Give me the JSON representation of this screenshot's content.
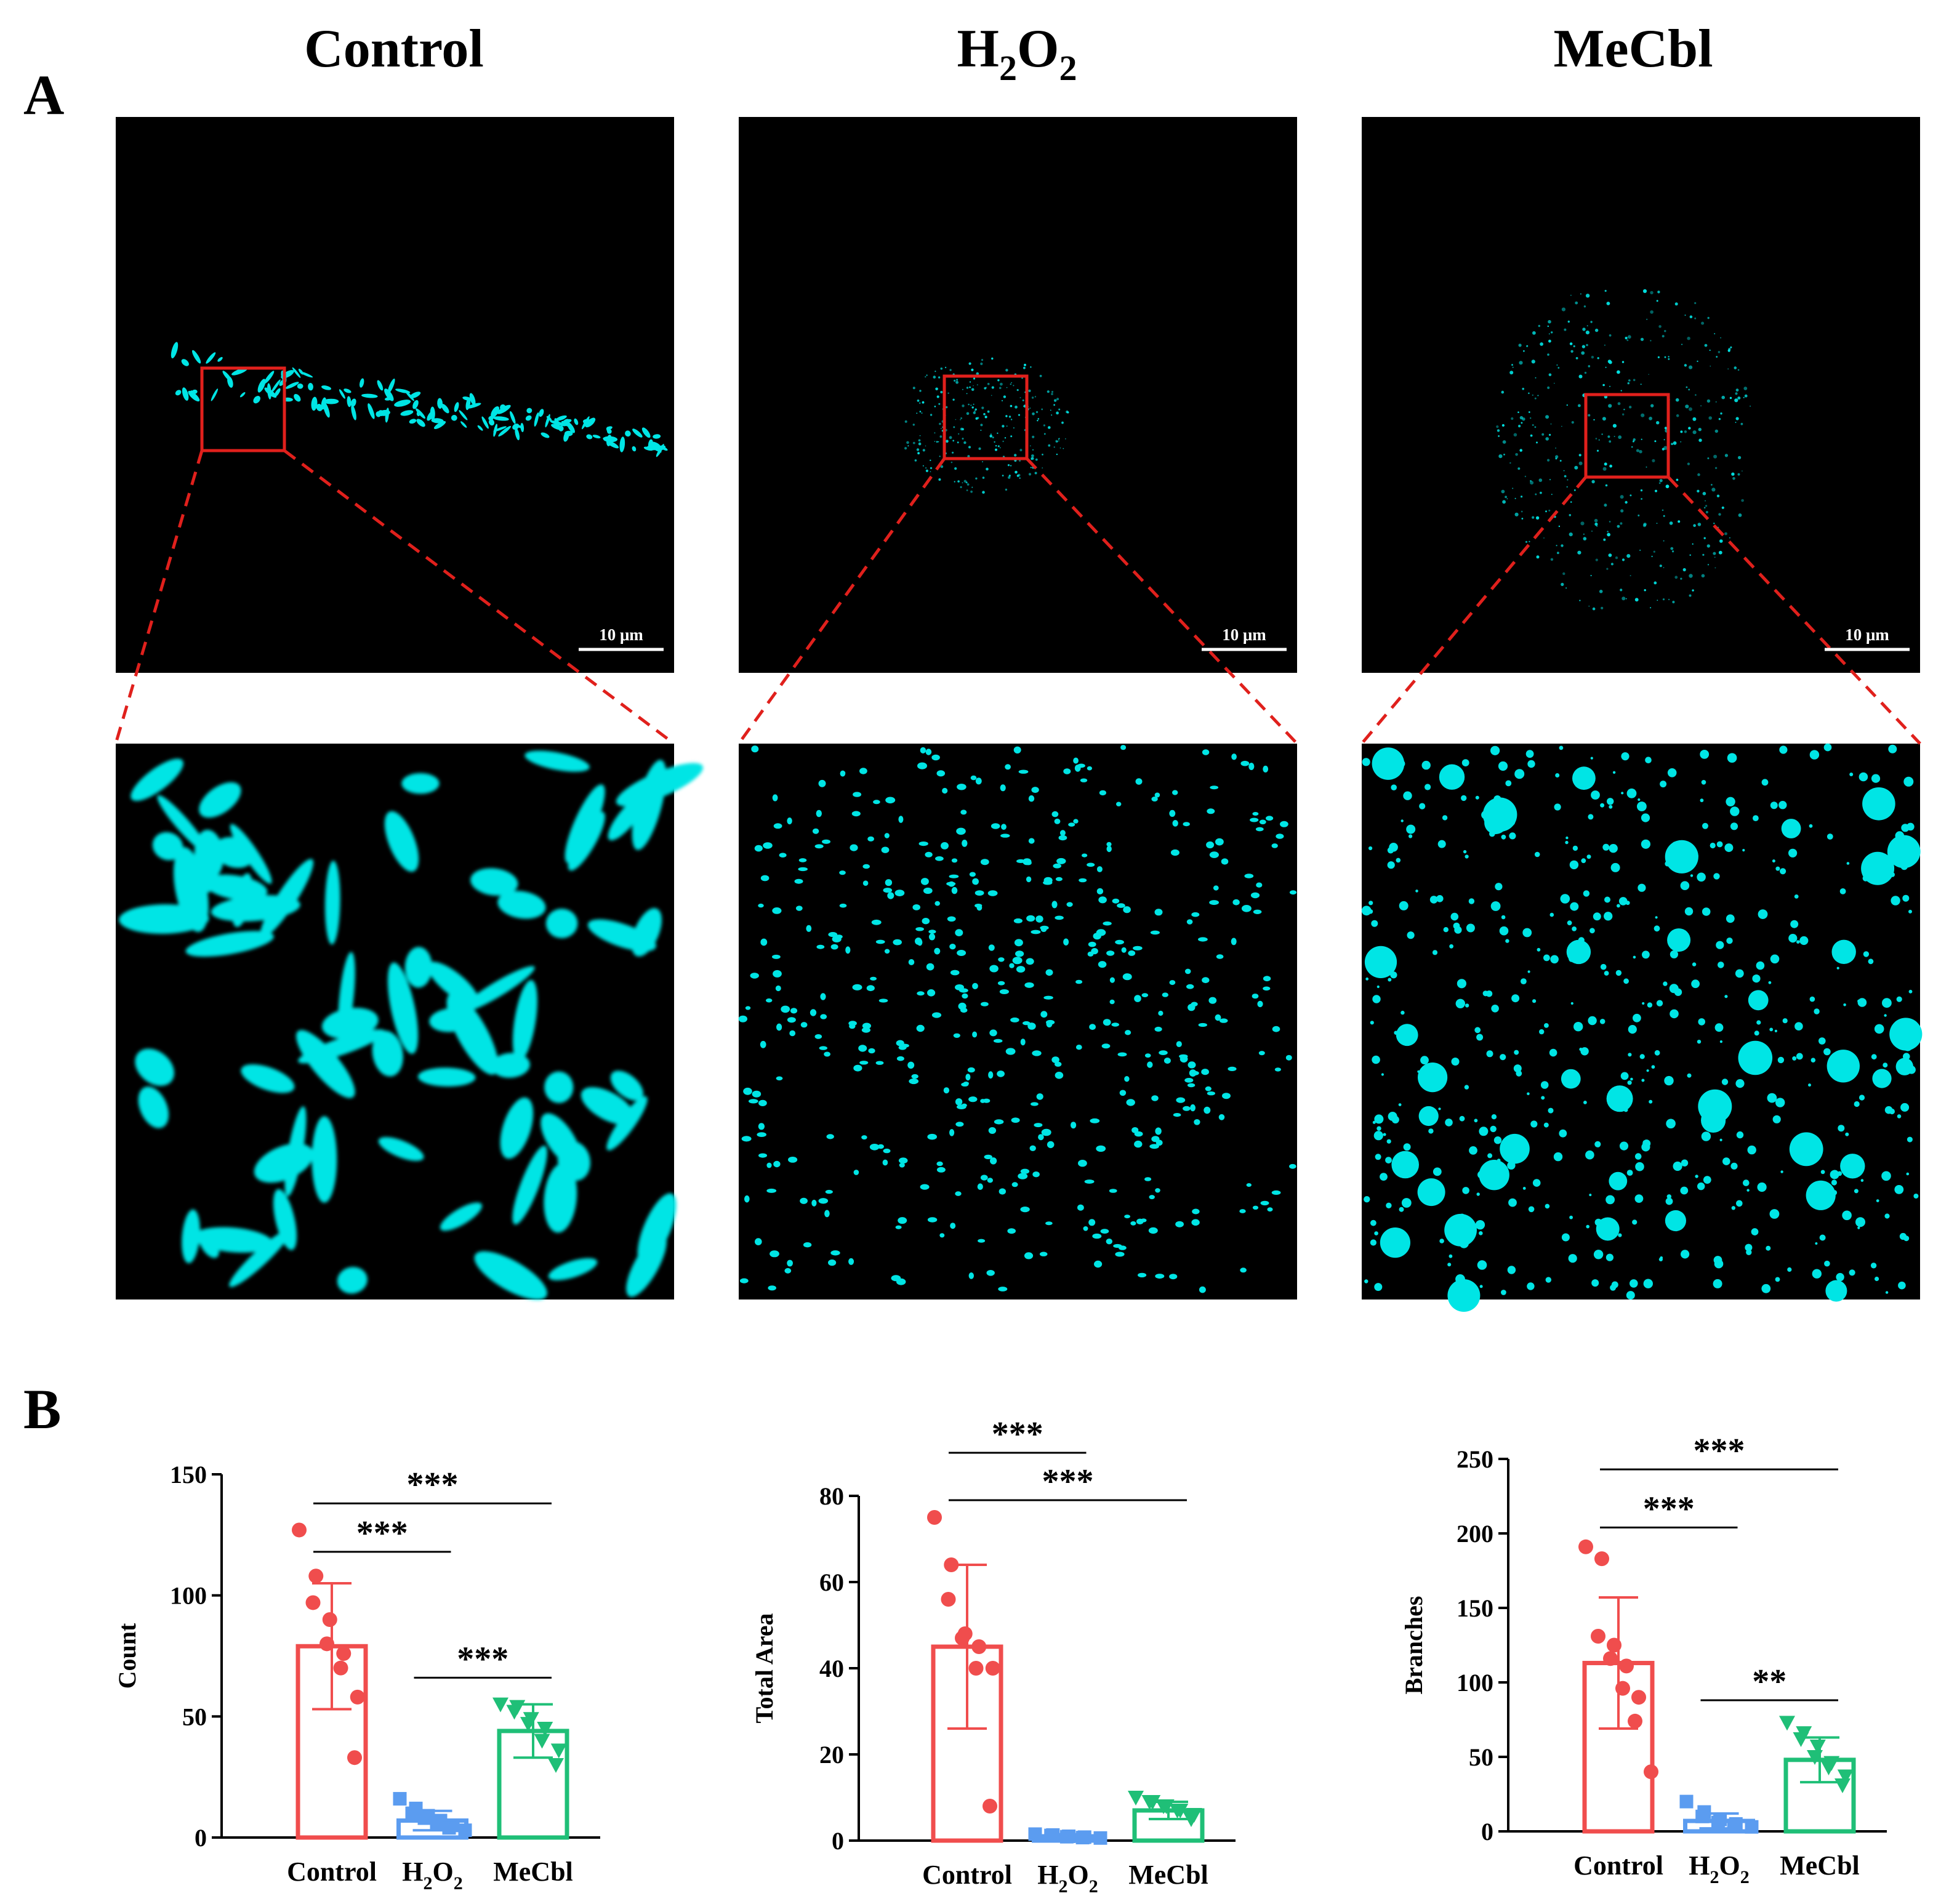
{
  "figure": {
    "panel_a_label": "A",
    "panel_b_label": "B",
    "columns": [
      {
        "title": "Control",
        "title_sub": "",
        "title_tail": "",
        "title_sub2": ""
      },
      {
        "title": "H",
        "title_sub": "2",
        "title_tail": "O",
        "title_sub2": "2"
      },
      {
        "title": "MeCbl",
        "title_sub": "",
        "title_tail": "",
        "title_sub2": ""
      }
    ],
    "scale_bar_label": "10 μm",
    "colors": {
      "micrograph_bg": "#000000",
      "mito_signal": "#00e5e5",
      "roi_box": "#e0201c",
      "zoom_lines": "#e0201c",
      "control": "#f04d4d",
      "h2o2": "#5b9cf0",
      "mecbl": "#1fbf77"
    }
  },
  "chart_data": [
    {
      "type": "bar",
      "title": "",
      "xlabel": "",
      "ylabel": "Count",
      "ylim": [
        0,
        150
      ],
      "yticks": [
        0,
        50,
        100,
        150
      ],
      "categories": [
        "Control",
        "H2O2",
        "MeCbl"
      ],
      "category_labels": [
        {
          "main": "Control",
          "sub": "",
          "tail": "",
          "sub2": ""
        },
        {
          "main": "H",
          "sub": "2",
          "tail": "O",
          "sub2": "2"
        },
        {
          "main": "MeCbl",
          "sub": "",
          "tail": "",
          "sub2": ""
        }
      ],
      "means": [
        79,
        7,
        44
      ],
      "sd": [
        26,
        4,
        11
      ],
      "points": [
        [
          127,
          108,
          97,
          90,
          80,
          76,
          70,
          58,
          33
        ],
        [
          16,
          12,
          10,
          9,
          8,
          7,
          6,
          5,
          4,
          3
        ],
        [
          55,
          54,
          52,
          49,
          47,
          45,
          40,
          36,
          30
        ]
      ],
      "markers": [
        "circle",
        "square",
        "triangle-down"
      ],
      "significance": [
        {
          "from": 0,
          "to": 2,
          "value": 138,
          "label": "***"
        },
        {
          "from": 0,
          "to": 1,
          "value": 118,
          "label": "***"
        },
        {
          "from": 1,
          "to": 2,
          "value": 66,
          "label": "***"
        }
      ]
    },
    {
      "type": "bar",
      "title": "",
      "xlabel": "",
      "ylabel": "Total Area",
      "ylim": [
        0,
        80
      ],
      "yticks": [
        0,
        20,
        40,
        60,
        80
      ],
      "categories": [
        "Control",
        "H2O2",
        "MeCbl"
      ],
      "category_labels": [
        {
          "main": "Control",
          "sub": "",
          "tail": "",
          "sub2": ""
        },
        {
          "main": "H",
          "sub": "2",
          "tail": "O",
          "sub2": "2"
        },
        {
          "main": "MeCbl",
          "sub": "",
          "tail": "",
          "sub2": ""
        }
      ],
      "means": [
        45,
        1,
        7
      ],
      "sd": [
        19,
        0.5,
        2
      ],
      "points": [
        [
          75,
          64,
          56,
          48,
          47,
          45,
          40,
          40,
          8
        ],
        [
          1.5,
          1.3,
          1.2,
          1.0,
          0.9,
          0.8,
          0.7,
          0.6
        ],
        [
          10,
          9,
          9,
          8,
          8,
          7,
          7,
          6,
          5
        ]
      ],
      "markers": [
        "circle",
        "square",
        "triangle-down"
      ],
      "significance": [
        {
          "from": 0,
          "to": 1,
          "value": 90,
          "label": "***"
        },
        {
          "from": 0,
          "to": 2,
          "value": 79,
          "label": "***"
        }
      ]
    },
    {
      "type": "bar",
      "title": "",
      "xlabel": "",
      "ylabel": "Branches",
      "ylim": [
        0,
        250
      ],
      "yticks": [
        0,
        50,
        100,
        150,
        200,
        250
      ],
      "categories": [
        "Control",
        "H2O2",
        "MeCbl"
      ],
      "category_labels": [
        {
          "main": "Control",
          "sub": "",
          "tail": "",
          "sub2": ""
        },
        {
          "main": "H",
          "sub": "2",
          "tail": "O",
          "sub2": "2"
        },
        {
          "main": "MeCbl",
          "sub": "",
          "tail": "",
          "sub2": ""
        }
      ],
      "means": [
        113,
        7,
        48
      ],
      "sd": [
        44,
        5,
        15
      ],
      "points": [
        [
          191,
          183,
          131,
          125,
          116,
          111,
          96,
          90,
          74,
          40
        ],
        [
          20,
          13,
          10,
          8,
          6,
          5,
          4,
          3
        ],
        [
          73,
          66,
          62,
          57,
          50,
          46,
          43,
          37,
          31
        ]
      ],
      "markers": [
        "circle",
        "square",
        "triangle-down"
      ],
      "significance": [
        {
          "from": 0,
          "to": 2,
          "value": 243,
          "label": "***"
        },
        {
          "from": 0,
          "to": 1,
          "value": 204,
          "label": "***"
        },
        {
          "from": 1,
          "to": 2,
          "value": 88,
          "label": "**"
        }
      ]
    }
  ]
}
